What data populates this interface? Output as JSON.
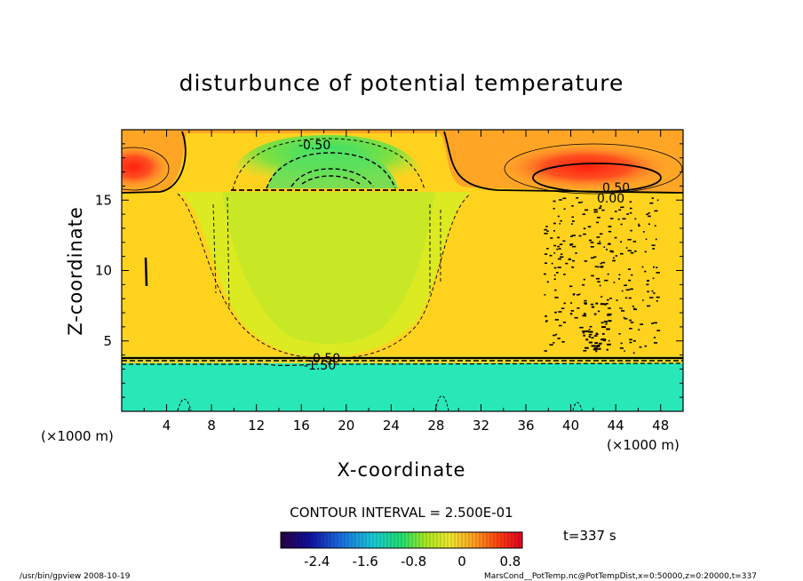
{
  "chart_data": {
    "type": "heatmap",
    "title": "disturbunce of potential temperature",
    "xlabel": "X-coordinate",
    "ylabel": "Z-coordinate",
    "x_unit_left": "(×1000 m)",
    "x_unit_right": "(×1000 m)",
    "xlim": [
      0,
      50
    ],
    "ylim": [
      0,
      20
    ],
    "x_ticks": [
      "4",
      "8",
      "12",
      "16",
      "20",
      "24",
      "28",
      "32",
      "36",
      "40",
      "44",
      "48"
    ],
    "y_ticks": [
      "5",
      "10",
      "15"
    ],
    "contour_interval_text": "CONTOUR INTERVAL = 2.500E-01",
    "contour_labels": [
      "-0.50",
      "0.50",
      "0.00",
      "0.50",
      "-1.50"
    ],
    "colorbar": {
      "tick_labels": [
        "-2.4",
        "-1.6",
        "-0.8",
        "0",
        "0.8"
      ],
      "range": [
        -3.0,
        1.0
      ]
    },
    "time_text": "t=337 s",
    "footer_left": "/usr/bin/gpview   2008-10-19",
    "footer_right": "MarsCond__PotTemp.nc@PotTempDist,x=0:50000,z=0:20000,t=337"
  }
}
